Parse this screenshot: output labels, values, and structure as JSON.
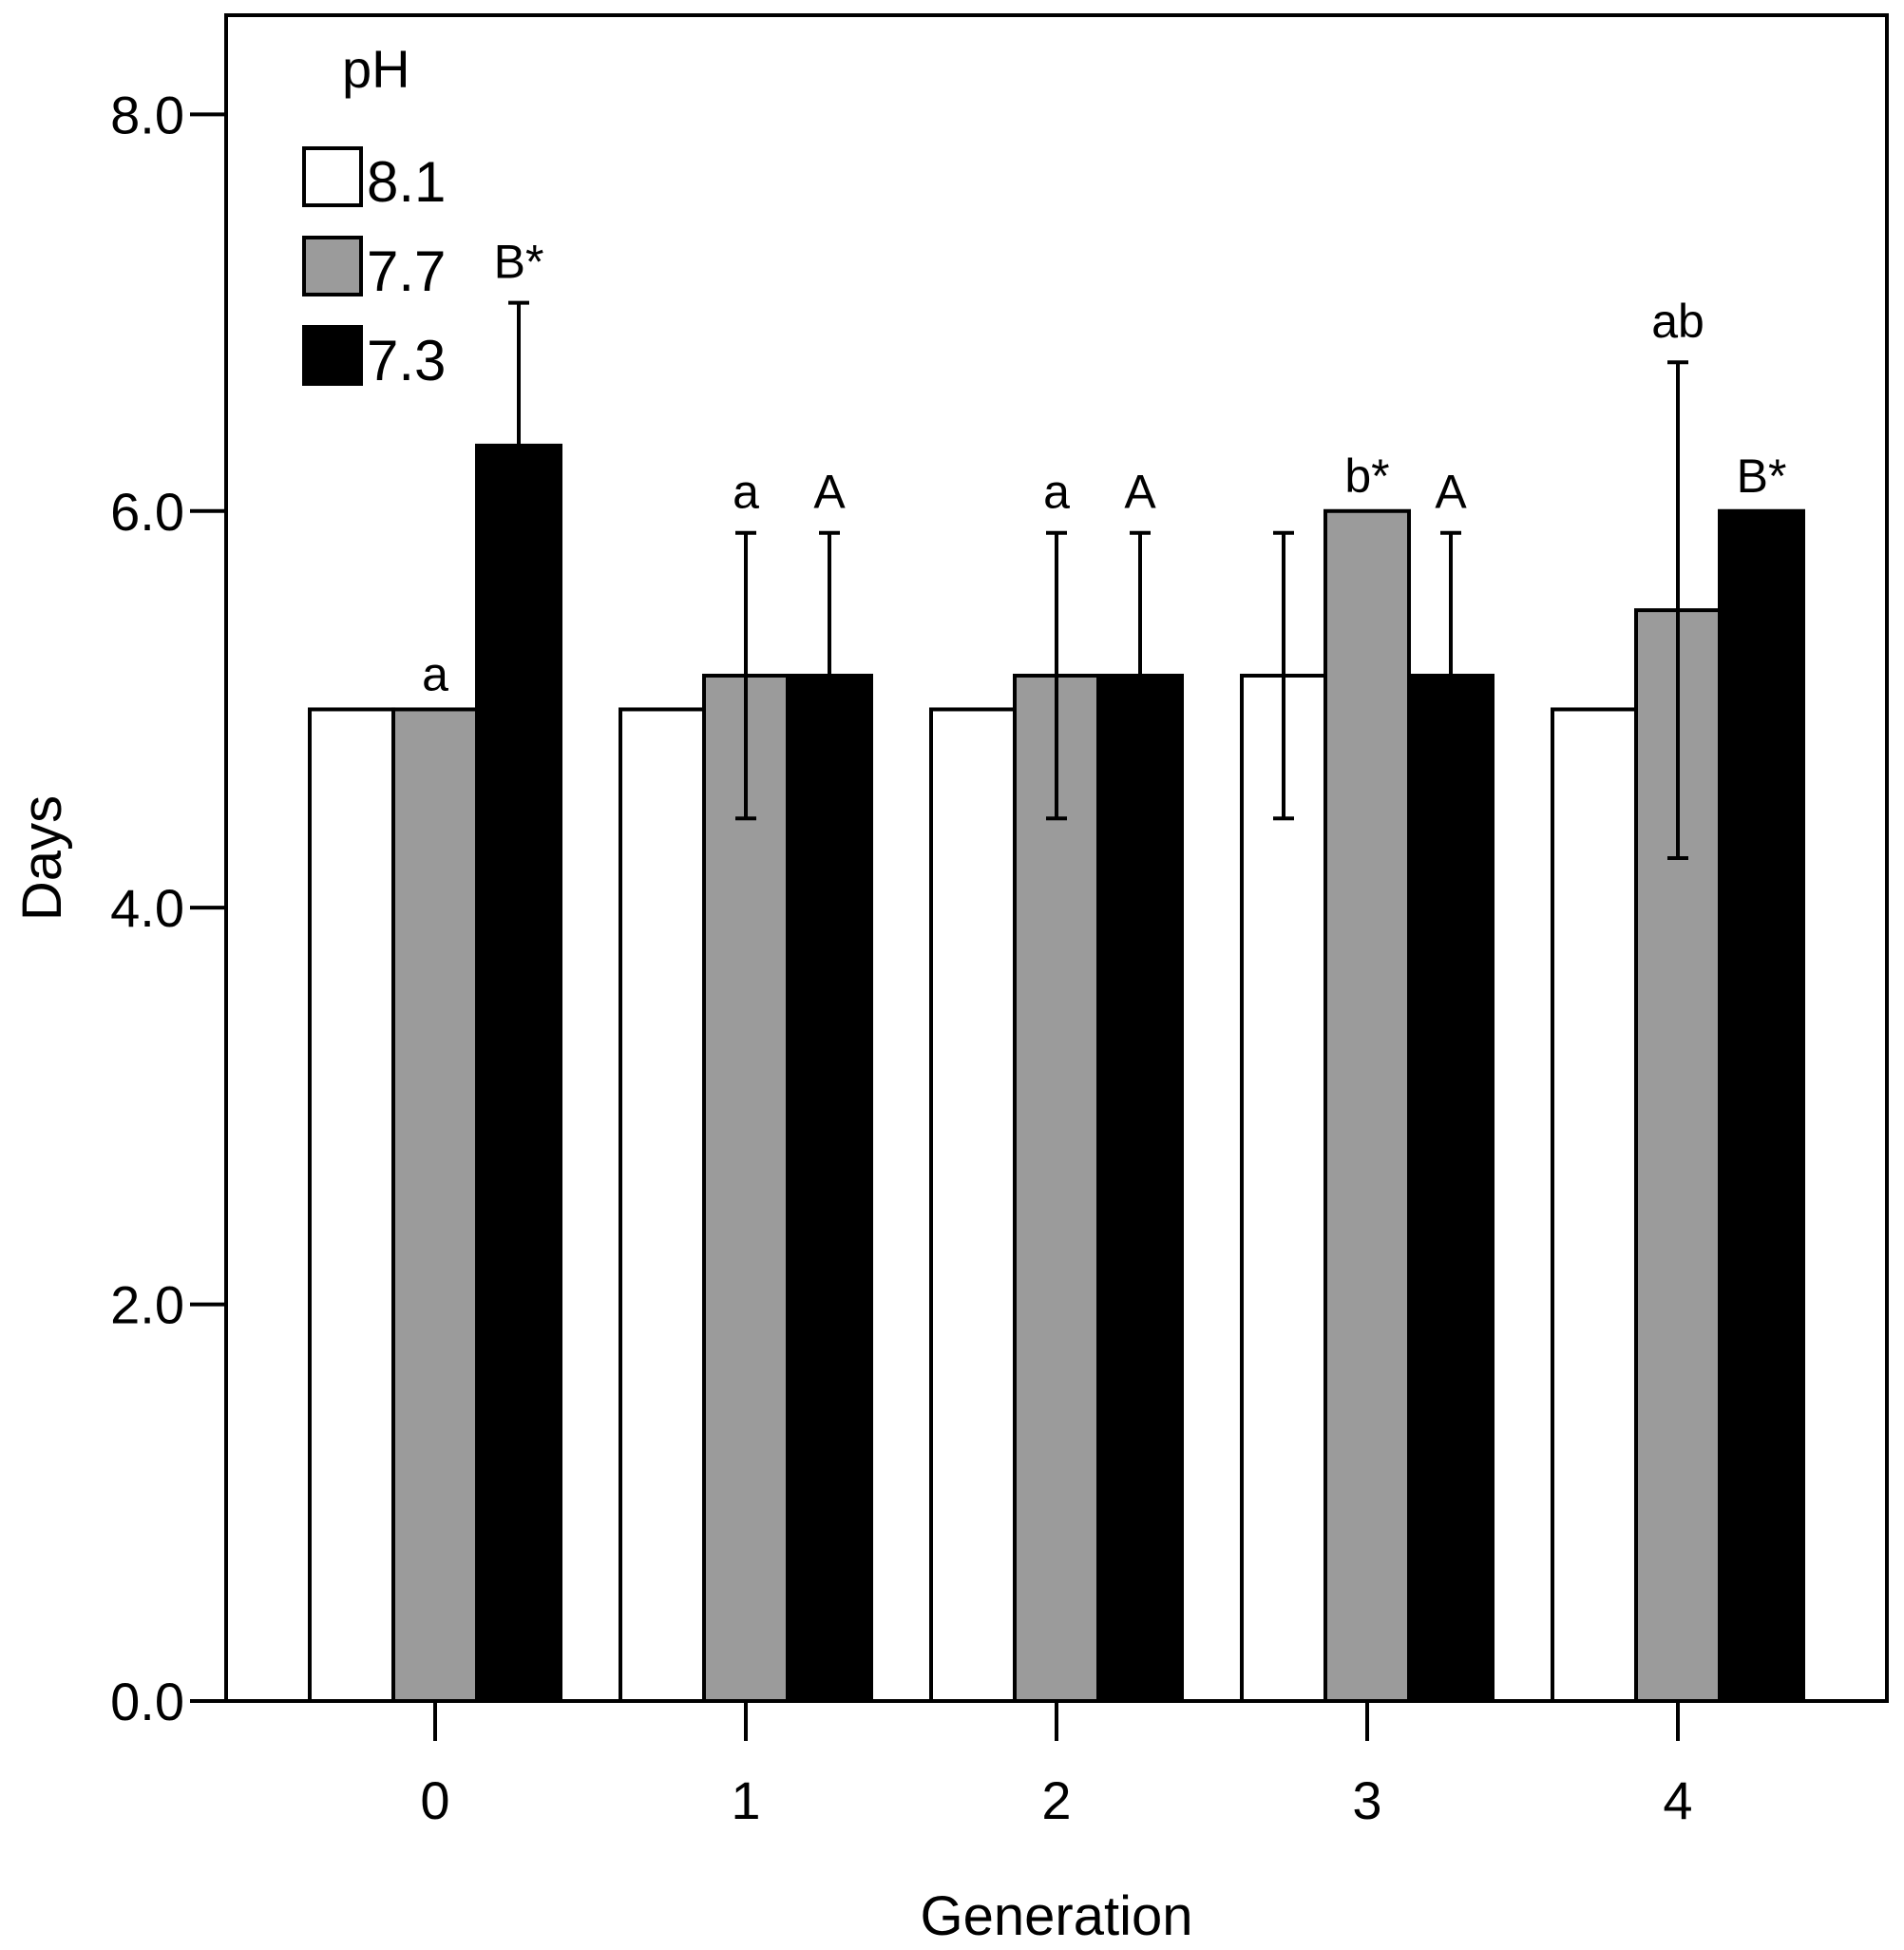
{
  "chart_data": {
    "type": "bar",
    "title": "",
    "xlabel": "Generation",
    "ylabel": "Days",
    "ylim": [
      0,
      8.5
    ],
    "yticks": [
      "0.0",
      "2.0",
      "4.0",
      "6.0",
      "8.0"
    ],
    "categories": [
      "0",
      "1",
      "2",
      "3",
      "4"
    ],
    "legend": {
      "title": "pH",
      "placement": "top-left"
    },
    "series": [
      {
        "name": "8.1",
        "color": "#ffffff",
        "values": [
          5.0,
          5.0,
          5.0,
          5.17,
          5.0
        ],
        "errors": [
          0,
          0,
          0,
          0.72,
          0
        ],
        "labels": [
          "",
          "",
          "",
          "",
          ""
        ]
      },
      {
        "name": "7.7",
        "color": "#9b9b9b",
        "values": [
          5.0,
          5.17,
          5.17,
          6.0,
          5.5
        ],
        "errors": [
          0,
          0.72,
          0.72,
          0,
          1.25
        ],
        "labels": [
          "a",
          "a",
          "a",
          "b*",
          "ab"
        ]
      },
      {
        "name": "7.3",
        "color": "#000000",
        "values": [
          6.33,
          5.17,
          5.17,
          5.17,
          6.0
        ],
        "errors": [
          0.72,
          0.72,
          0.72,
          0.72,
          0
        ],
        "labels": [
          "B*",
          "A",
          "A",
          "A",
          "B*"
        ]
      }
    ]
  }
}
